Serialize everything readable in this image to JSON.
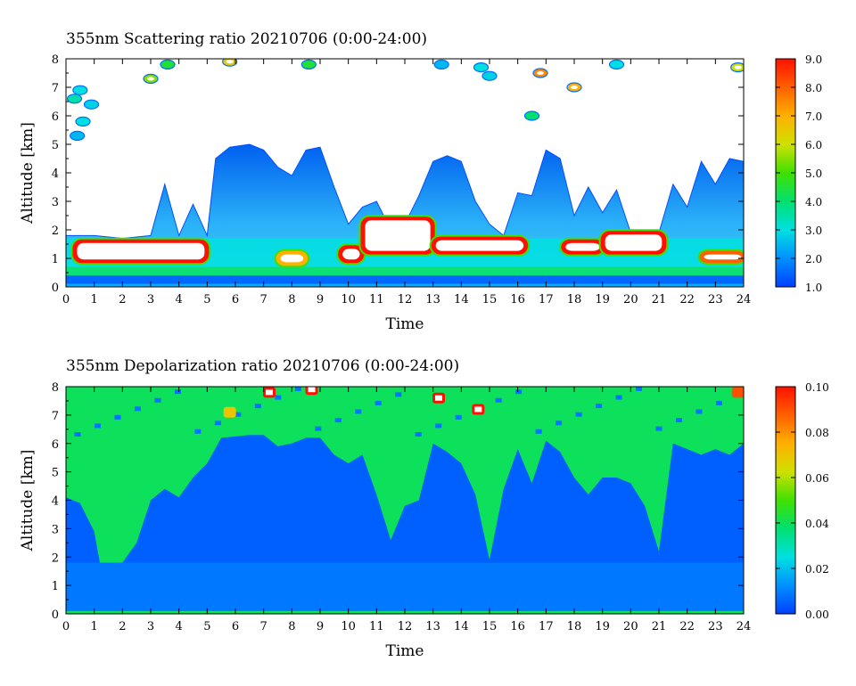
{
  "chart_data": [
    {
      "type": "heatmap",
      "title": "355nm Scattering ratio  20210706 (0:00-24:00)",
      "xlabel": "Time",
      "ylabel": "Altitude [km]",
      "xlim": [
        0,
        24
      ],
      "ylim": [
        0,
        8
      ],
      "x_ticks": [
        "0",
        "1",
        "2",
        "3",
        "4",
        "5",
        "6",
        "7",
        "8",
        "9",
        "10",
        "11",
        "12",
        "13",
        "14",
        "15",
        "16",
        "17",
        "18",
        "19",
        "20",
        "21",
        "22",
        "23",
        "24"
      ],
      "y_ticks": [
        "0",
        "1",
        "2",
        "3",
        "4",
        "5",
        "6",
        "7",
        "8"
      ],
      "colorbar": {
        "range": [
          1.0,
          9.0
        ],
        "ticks": [
          "1.0",
          "2.0",
          "3.0",
          "4.0",
          "5.0",
          "6.0",
          "7.0",
          "8.0",
          "9.0"
        ],
        "colors": [
          "#0040ff",
          "#0090ff",
          "#00e0e0",
          "#00e070",
          "#40e000",
          "#d0e000",
          "#ffb000",
          "#ff6000",
          "#ff1000"
        ]
      },
      "background_layer": {
        "y_range": [
          0.3,
          1.7
        ],
        "value": 3.0
      },
      "surface_layer": {
        "y_range": [
          0.1,
          0.4
        ],
        "value": 1.5
      },
      "low_cloud_layer": [
        {
          "x_range": [
            0.3,
            5.0
          ],
          "y_range": [
            0.9,
            1.6
          ],
          "value": 9.0
        },
        {
          "x_range": [
            7.5,
            8.5
          ],
          "y_range": [
            0.8,
            1.2
          ],
          "value": 7.0
        },
        {
          "x_range": [
            9.7,
            10.5
          ],
          "y_range": [
            0.9,
            1.4
          ],
          "value": 9.0
        },
        {
          "x_range": [
            10.5,
            13.0
          ],
          "y_range": [
            1.2,
            2.4
          ],
          "value": 9.0
        },
        {
          "x_range": [
            13.0,
            16.3
          ],
          "y_range": [
            1.2,
            1.7
          ],
          "value": 9.0
        },
        {
          "x_range": [
            17.6,
            19.0
          ],
          "y_range": [
            1.2,
            1.6
          ],
          "value": 9.0
        },
        {
          "x_range": [
            19.0,
            21.2
          ],
          "y_range": [
            1.2,
            1.9
          ],
          "value": 9.0
        },
        {
          "x_range": [
            22.5,
            24.0
          ],
          "y_range": [
            0.9,
            1.2
          ],
          "value": 8.0
        }
      ],
      "plume_profile": [
        [
          0,
          1.8
        ],
        [
          1,
          1.8
        ],
        [
          2,
          1.7
        ],
        [
          3,
          1.8
        ],
        [
          3.5,
          3.6
        ],
        [
          4,
          1.8
        ],
        [
          4.5,
          2.9
        ],
        [
          5,
          1.8
        ],
        [
          5.3,
          4.5
        ],
        [
          5.8,
          4.9
        ],
        [
          6.5,
          5.0
        ],
        [
          7,
          4.8
        ],
        [
          7.5,
          4.2
        ],
        [
          8,
          3.9
        ],
        [
          8.5,
          4.8
        ],
        [
          9,
          4.9
        ],
        [
          9.5,
          3.5
        ],
        [
          10,
          2.2
        ],
        [
          10.5,
          2.8
        ],
        [
          11,
          3.0
        ],
        [
          11.5,
          2.0
        ],
        [
          12,
          2.2
        ],
        [
          12.5,
          3.2
        ],
        [
          13,
          4.4
        ],
        [
          13.5,
          4.6
        ],
        [
          14,
          4.4
        ],
        [
          14.5,
          3.0
        ],
        [
          15,
          2.2
        ],
        [
          15.5,
          1.8
        ],
        [
          16,
          3.3
        ],
        [
          16.5,
          3.2
        ],
        [
          17,
          4.8
        ],
        [
          17.5,
          4.5
        ],
        [
          18,
          2.5
        ],
        [
          18.5,
          3.5
        ],
        [
          19,
          2.6
        ],
        [
          19.5,
          3.4
        ],
        [
          20,
          1.9
        ],
        [
          21,
          1.9
        ],
        [
          21.5,
          3.6
        ],
        [
          22,
          2.8
        ],
        [
          22.5,
          4.4
        ],
        [
          23,
          3.6
        ],
        [
          23.5,
          4.5
        ],
        [
          24,
          4.4
        ]
      ],
      "upper_cloud_patches": [
        {
          "x": 0.3,
          "y": 6.6,
          "value": 3.5
        },
        {
          "x": 0.9,
          "y": 6.4,
          "value": 2.8
        },
        {
          "x": 0.5,
          "y": 6.9,
          "value": 3.0
        },
        {
          "x": 0.6,
          "y": 5.8,
          "value": 3.0
        },
        {
          "x": 0.4,
          "y": 5.3,
          "value": 2.5
        },
        {
          "x": 3.0,
          "y": 7.3,
          "value": 5.5
        },
        {
          "x": 3.6,
          "y": 7.8,
          "value": 4.5
        },
        {
          "x": 5.8,
          "y": 7.9,
          "value": 6.5
        },
        {
          "x": 8.6,
          "y": 7.8,
          "value": 4.5
        },
        {
          "x": 13.3,
          "y": 7.8,
          "value": 2.5
        },
        {
          "x": 14.7,
          "y": 7.7,
          "value": 3.0
        },
        {
          "x": 15.0,
          "y": 7.4,
          "value": 2.8
        },
        {
          "x": 16.8,
          "y": 7.5,
          "value": 7.5
        },
        {
          "x": 18.0,
          "y": 7.0,
          "value": 7.0
        },
        {
          "x": 16.5,
          "y": 6.0,
          "value": 4.0
        },
        {
          "x": 23.8,
          "y": 7.7,
          "value": 6.0
        },
        {
          "x": 19.5,
          "y": 7.8,
          "value": 3.0
        }
      ]
    },
    {
      "type": "heatmap",
      "title": "355nm Depolarization ratio  20210706 (0:00-24:00)",
      "xlabel": "Time",
      "ylabel": "Altitude [km]",
      "xlim": [
        0,
        24
      ],
      "ylim": [
        0,
        8
      ],
      "x_ticks": [
        "0",
        "1",
        "2",
        "3",
        "4",
        "5",
        "6",
        "7",
        "8",
        "9",
        "10",
        "11",
        "12",
        "13",
        "14",
        "15",
        "16",
        "17",
        "18",
        "19",
        "20",
        "21",
        "22",
        "23",
        "24"
      ],
      "y_ticks": [
        "0",
        "1",
        "2",
        "3",
        "4",
        "5",
        "6",
        "7",
        "8"
      ],
      "colorbar": {
        "range": [
          0.0,
          0.1
        ],
        "ticks": [
          "0.00",
          "0.02",
          "0.04",
          "0.06",
          "0.08",
          "0.10"
        ],
        "colors": [
          "#0040ff",
          "#0090ff",
          "#00e0e0",
          "#00e070",
          "#40e000",
          "#d0e000",
          "#ffb000",
          "#ff6000",
          "#ff1000"
        ]
      },
      "upper_region_value": 0.04,
      "plume_value": 0.005,
      "boundary_layer": {
        "y_range": [
          0.0,
          1.8
        ],
        "value": 0.012
      },
      "plume_top_profile": [
        [
          0,
          4.1
        ],
        [
          0.5,
          3.9
        ],
        [
          1,
          2.9
        ],
        [
          1.2,
          1.8
        ],
        [
          2,
          1.8
        ],
        [
          2.5,
          2.5
        ],
        [
          3,
          4.0
        ],
        [
          3.5,
          4.4
        ],
        [
          4,
          4.1
        ],
        [
          4.5,
          4.8
        ],
        [
          5,
          5.3
        ],
        [
          5.5,
          6.2
        ],
        [
          6.5,
          6.3
        ],
        [
          7,
          6.3
        ],
        [
          7.5,
          5.9
        ],
        [
          8,
          6.0
        ],
        [
          8.5,
          6.2
        ],
        [
          9,
          6.2
        ],
        [
          9.5,
          5.6
        ],
        [
          10,
          5.3
        ],
        [
          10.5,
          5.6
        ],
        [
          11,
          4.2
        ],
        [
          11.5,
          2.6
        ],
        [
          12,
          3.8
        ],
        [
          12.5,
          4.0
        ],
        [
          13,
          6.0
        ],
        [
          13.5,
          5.7
        ],
        [
          14,
          5.3
        ],
        [
          14.5,
          4.2
        ],
        [
          15,
          1.9
        ],
        [
          15.5,
          4.4
        ],
        [
          16,
          5.8
        ],
        [
          16.5,
          4.6
        ],
        [
          17,
          6.1
        ],
        [
          17.5,
          5.7
        ],
        [
          18,
          4.8
        ],
        [
          18.5,
          4.2
        ],
        [
          19,
          4.8
        ],
        [
          19.5,
          4.8
        ],
        [
          20,
          4.6
        ],
        [
          20.5,
          3.8
        ],
        [
          21,
          2.2
        ],
        [
          21.5,
          6.0
        ],
        [
          22,
          5.8
        ],
        [
          22.5,
          5.6
        ],
        [
          23,
          5.8
        ],
        [
          23.5,
          5.6
        ],
        [
          24,
          6.0
        ]
      ],
      "upper_cloud_patches": [
        {
          "x": 5.8,
          "y": 7.1,
          "value": 0.07
        },
        {
          "x": 8.7,
          "y": 7.9,
          "value": 0.1
        },
        {
          "x": 7.2,
          "y": 7.8,
          "value": 0.1
        },
        {
          "x": 13.2,
          "y": 7.6,
          "value": 0.1
        },
        {
          "x": 14.6,
          "y": 7.2,
          "value": 0.1
        },
        {
          "x": 23.8,
          "y": 7.8,
          "value": 0.09
        }
      ]
    }
  ]
}
